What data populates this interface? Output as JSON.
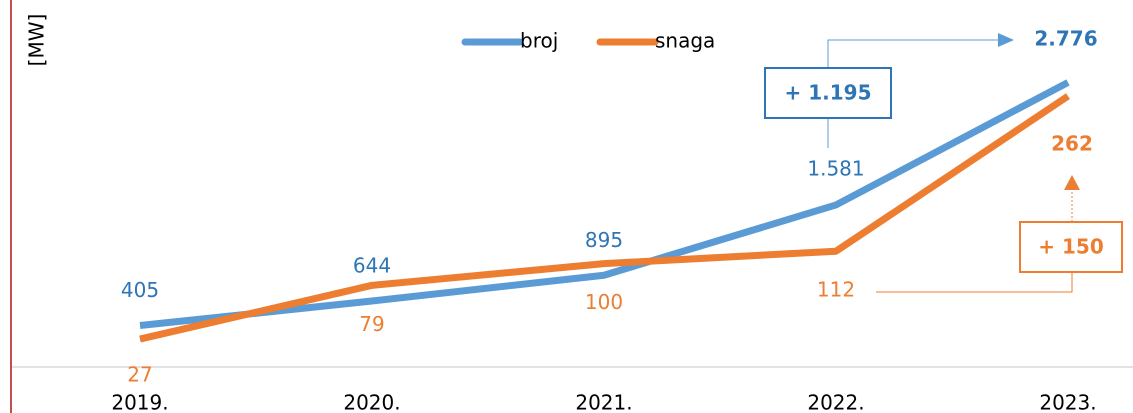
{
  "chart_data": {
    "type": "line",
    "y_label": "[MW]",
    "categories": [
      "2019.",
      "2020.",
      "2021.",
      "2022.",
      "2023."
    ],
    "series": [
      {
        "name": "broj",
        "color": "#5b9bd5",
        "values": [
          405,
          644,
          895,
          1581,
          2776
        ],
        "value_labels": [
          "405",
          "644",
          "895",
          "1.581",
          "2.776"
        ]
      },
      {
        "name": "snaga",
        "color": "#ed7d31",
        "axis": "y2",
        "values": [
          27,
          79,
          100,
          112,
          262
        ]
      }
    ],
    "ylim": [
      0,
      3580
    ],
    "y2lim": [
      0,
      355
    ],
    "annotations": [
      "+ 1.195",
      "+ 150"
    ],
    "legend": "top"
  }
}
